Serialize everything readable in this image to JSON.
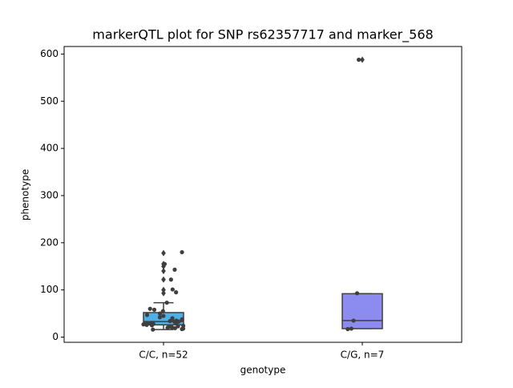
{
  "chart_data": {
    "type": "box",
    "title": "markerQTL plot for SNP rs62357717 and marker_568",
    "xlabel": "genotype",
    "ylabel": "phenotype",
    "categories": [
      "C/C, n=52",
      "C/G, n=7"
    ],
    "colors": [
      "#4fb0e8",
      "#8c8cf0"
    ],
    "point_color": "#3f3f3f",
    "boxes": [
      {
        "whislo": 16,
        "q1": 26,
        "median": 33,
        "q3": 52,
        "whishi": 73,
        "fliers": [
          93,
          100,
          122,
          140,
          150,
          155,
          178
        ],
        "points": [
          180,
          155,
          143,
          122,
          101,
          95,
          73,
          60,
          58,
          55,
          50,
          47,
          45,
          42,
          40,
          38,
          36,
          35,
          34,
          33,
          32,
          31,
          30,
          30,
          29,
          28,
          27,
          26,
          25,
          24,
          23,
          22,
          21,
          20,
          19,
          18,
          17,
          16
        ]
      },
      {
        "whislo": 18,
        "q1": 18,
        "median": 35,
        "q3": 92,
        "whishi": 92,
        "fliers": [
          588
        ],
        "points": [
          93,
          35,
          18,
          17,
          588
        ]
      }
    ],
    "ylim": [
      -11,
      616
    ],
    "yticks": [
      0,
      100,
      200,
      300,
      400,
      500,
      600
    ]
  }
}
